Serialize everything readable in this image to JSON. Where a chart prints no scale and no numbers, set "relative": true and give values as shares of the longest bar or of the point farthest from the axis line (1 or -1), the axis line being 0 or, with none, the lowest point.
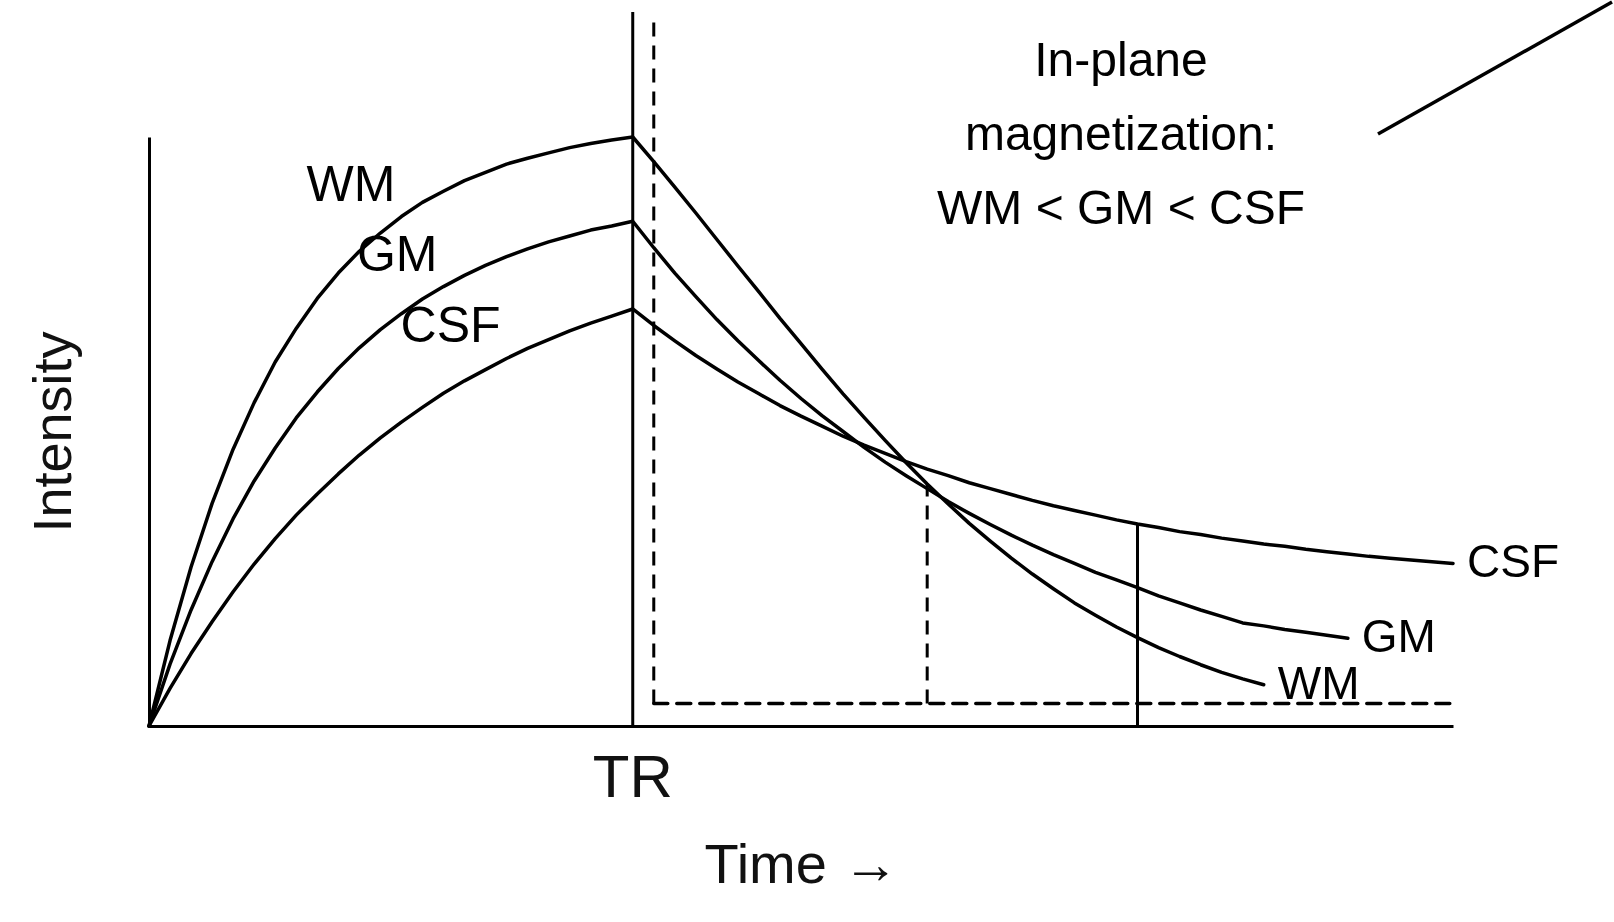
{
  "chart_data": {
    "type": "line",
    "relative": true,
    "xlabel": "Time →",
    "ylabel": "Intensity",
    "grid": false,
    "categories": [
      null,
      null,
      null,
      null,
      null,
      null,
      null,
      null,
      null,
      null,
      null,
      null,
      null,
      null,
      null,
      null,
      null,
      null,
      null,
      null,
      null,
      null,
      null,
      null,
      null,
      null,
      null,
      null,
      null,
      null,
      null,
      null,
      null,
      null,
      null,
      null,
      null,
      null,
      null,
      null,
      null,
      null,
      null,
      null,
      null,
      null,
      null,
      null,
      null,
      null,
      null,
      null,
      null,
      null,
      null,
      null,
      null,
      null,
      null,
      null,
      null,
      null,
      null
    ],
    "series": [
      {
        "name": "WM",
        "color": "#000000",
        "values": [
          0,
          0.145,
          0.27,
          0.378,
          0.47,
          0.549,
          0.618,
          0.675,
          0.726,
          0.769,
          0.806,
          0.837,
          0.865,
          0.889,
          0.908,
          0.926,
          0.94,
          0.954,
          0.964,
          0.973,
          0.982,
          0.989,
          0.995,
          1,
          0.958,
          0.915,
          0.871,
          0.826,
          0.781,
          0.737,
          0.692,
          0.649,
          0.606,
          0.564,
          0.524,
          0.485,
          0.447,
          0.411,
          0.377,
          0.344,
          0.314,
          0.285,
          0.258,
          0.233,
          0.209,
          0.188,
          0.168,
          0.15,
          0.133,
          0.118,
          0.104,
          0.091,
          0.08,
          0.07,
          null,
          null,
          null,
          null,
          null,
          null,
          null,
          null,
          null
        ]
      },
      {
        "name": "GM",
        "color": "#000000",
        "values": [
          0,
          0.105,
          0.197,
          0.279,
          0.352,
          0.416,
          0.472,
          0.523,
          0.567,
          0.607,
          0.642,
          0.673,
          0.7,
          0.725,
          0.746,
          0.765,
          0.782,
          0.797,
          0.81,
          0.822,
          0.832,
          0.842,
          0.849,
          0.857,
          0.812,
          0.769,
          0.729,
          0.69,
          0.654,
          0.62,
          0.587,
          0.556,
          0.527,
          0.5,
          0.473,
          0.448,
          0.425,
          0.403,
          0.381,
          0.361,
          0.342,
          0.324,
          0.307,
          0.291,
          0.276,
          0.261,
          0.248,
          0.235,
          0.221,
          0.209,
          0.197,
          0.186,
          0.175,
          0.17,
          0.164,
          0.159,
          0.154,
          0.149,
          null,
          null,
          null,
          null,
          null
        ]
      },
      {
        "name": "CSF",
        "color": "#000000",
        "values": [
          0,
          0.064,
          0.123,
          0.177,
          0.228,
          0.275,
          0.318,
          0.358,
          0.394,
          0.428,
          0.46,
          0.489,
          0.516,
          0.541,
          0.565,
          0.586,
          0.605,
          0.624,
          0.641,
          0.656,
          0.671,
          0.684,
          0.696,
          0.708,
          0.68,
          0.654,
          0.629,
          0.606,
          0.584,
          0.564,
          0.544,
          0.526,
          0.509,
          0.492,
          0.477,
          0.463,
          0.449,
          0.436,
          0.425,
          0.413,
          0.403,
          0.393,
          0.383,
          0.374,
          0.366,
          0.358,
          0.35,
          0.343,
          0.337,
          0.33,
          0.325,
          0.319,
          0.314,
          0.309,
          0.305,
          0.3,
          0.296,
          0.292,
          0.288,
          0.285,
          0.282,
          0.279,
          0.276
        ]
      },
      {
        "color": "#000000",
        "line_style": "dashed",
        "values": [
          null,
          null,
          null,
          null,
          null,
          null,
          null,
          null,
          null,
          null,
          null,
          null,
          null,
          null,
          null,
          null,
          null,
          null,
          null,
          null,
          null,
          null,
          null,
          null,
          0.038,
          0.038,
          0.038,
          0.038,
          0.038,
          0.038,
          0.038,
          0.038,
          0.038,
          0.038,
          0.038,
          0.038,
          0.038,
          0.038,
          0.038,
          0.038,
          0.038,
          0.038,
          0.038,
          0.038,
          0.038,
          0.038,
          0.038,
          0.038,
          0.038,
          0.038,
          0.038,
          0.038,
          0.038,
          0.038,
          0.038,
          0.038,
          0.038,
          0.038,
          0.038,
          0.038,
          0.038,
          0.038,
          0.038
        ]
      }
    ],
    "annotations": [
      "In-plane\nmagnetization:\nWM < GM < CSF",
      "TR"
    ]
  }
}
